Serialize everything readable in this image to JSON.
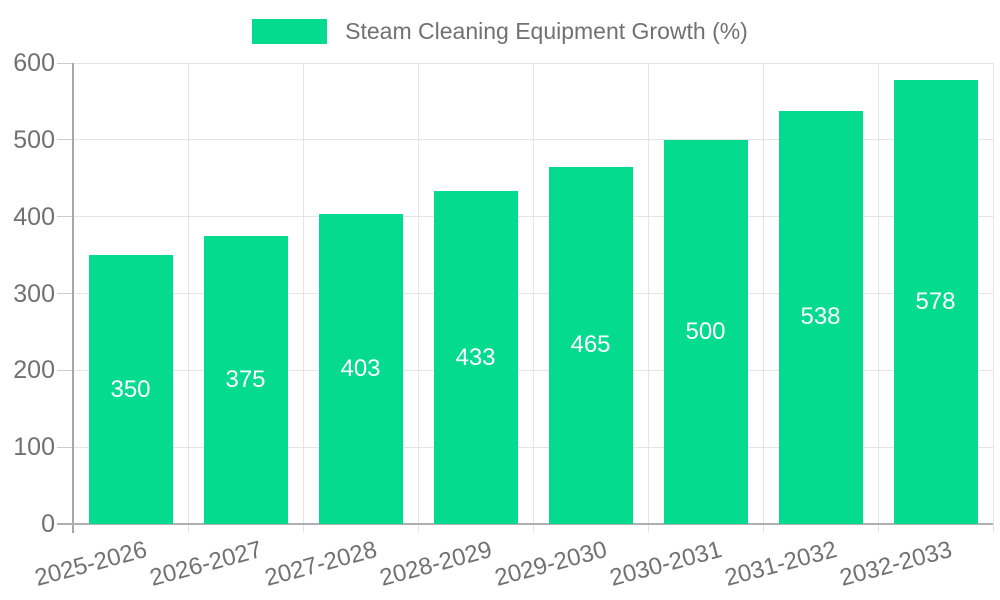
{
  "chart_data": {
    "type": "bar",
    "categories": [
      "2025-2026",
      "2026-2027",
      "2027-2028",
      "2028-2029",
      "2029-2030",
      "2030-2031",
      "2031-2032",
      "2032-2033"
    ],
    "series": [
      {
        "name": "Steam Cleaning Equipment Growth (%)",
        "values": [
          350,
          375,
          403,
          433,
          465,
          500,
          538,
          578
        ]
      }
    ],
    "xlabel": "",
    "ylabel": "",
    "ylim": [
      0,
      600
    ],
    "yticks": [
      0,
      100,
      200,
      300,
      400,
      500,
      600
    ],
    "grid": true,
    "legend_position": "top-center",
    "x_label_rotation_deg": -15,
    "bar_label_position": "center-inside",
    "colors": {
      "bar": "#04DB8F",
      "bar_value_label": "#ffffff",
      "axis_line": "#b0b0b0",
      "grid_line": "#e5e5e5",
      "tick": "#cccccc",
      "axis_text": "#717171"
    }
  }
}
